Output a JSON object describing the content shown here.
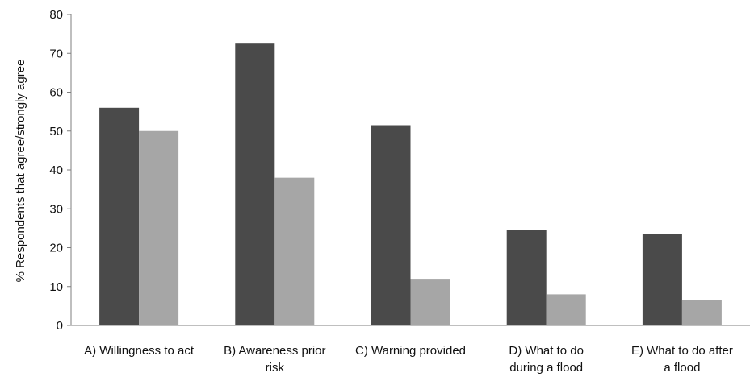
{
  "chart_data": {
    "type": "bar",
    "title": "",
    "xlabel": "",
    "ylabel": "% Respondents that agree/strongly agree",
    "ylim": [
      0,
      80
    ],
    "yticks": [
      0,
      10,
      20,
      30,
      40,
      50,
      60,
      70,
      80
    ],
    "grid": false,
    "legend": "none",
    "categories": [
      [
        "A) Willingness to act"
      ],
      [
        "B) Awareness prior",
        "risk"
      ],
      [
        "C) Warning provided"
      ],
      [
        "D) What to do",
        "during a flood"
      ],
      [
        "E) What to do after",
        "a flood"
      ]
    ],
    "series": [
      {
        "color": "#4a4a4a",
        "values": [
          56,
          72.5,
          51.5,
          24.5,
          23.5
        ]
      },
      {
        "color": "#a6a6a6",
        "values": [
          50,
          38,
          12,
          8,
          6.5
        ]
      }
    ]
  }
}
